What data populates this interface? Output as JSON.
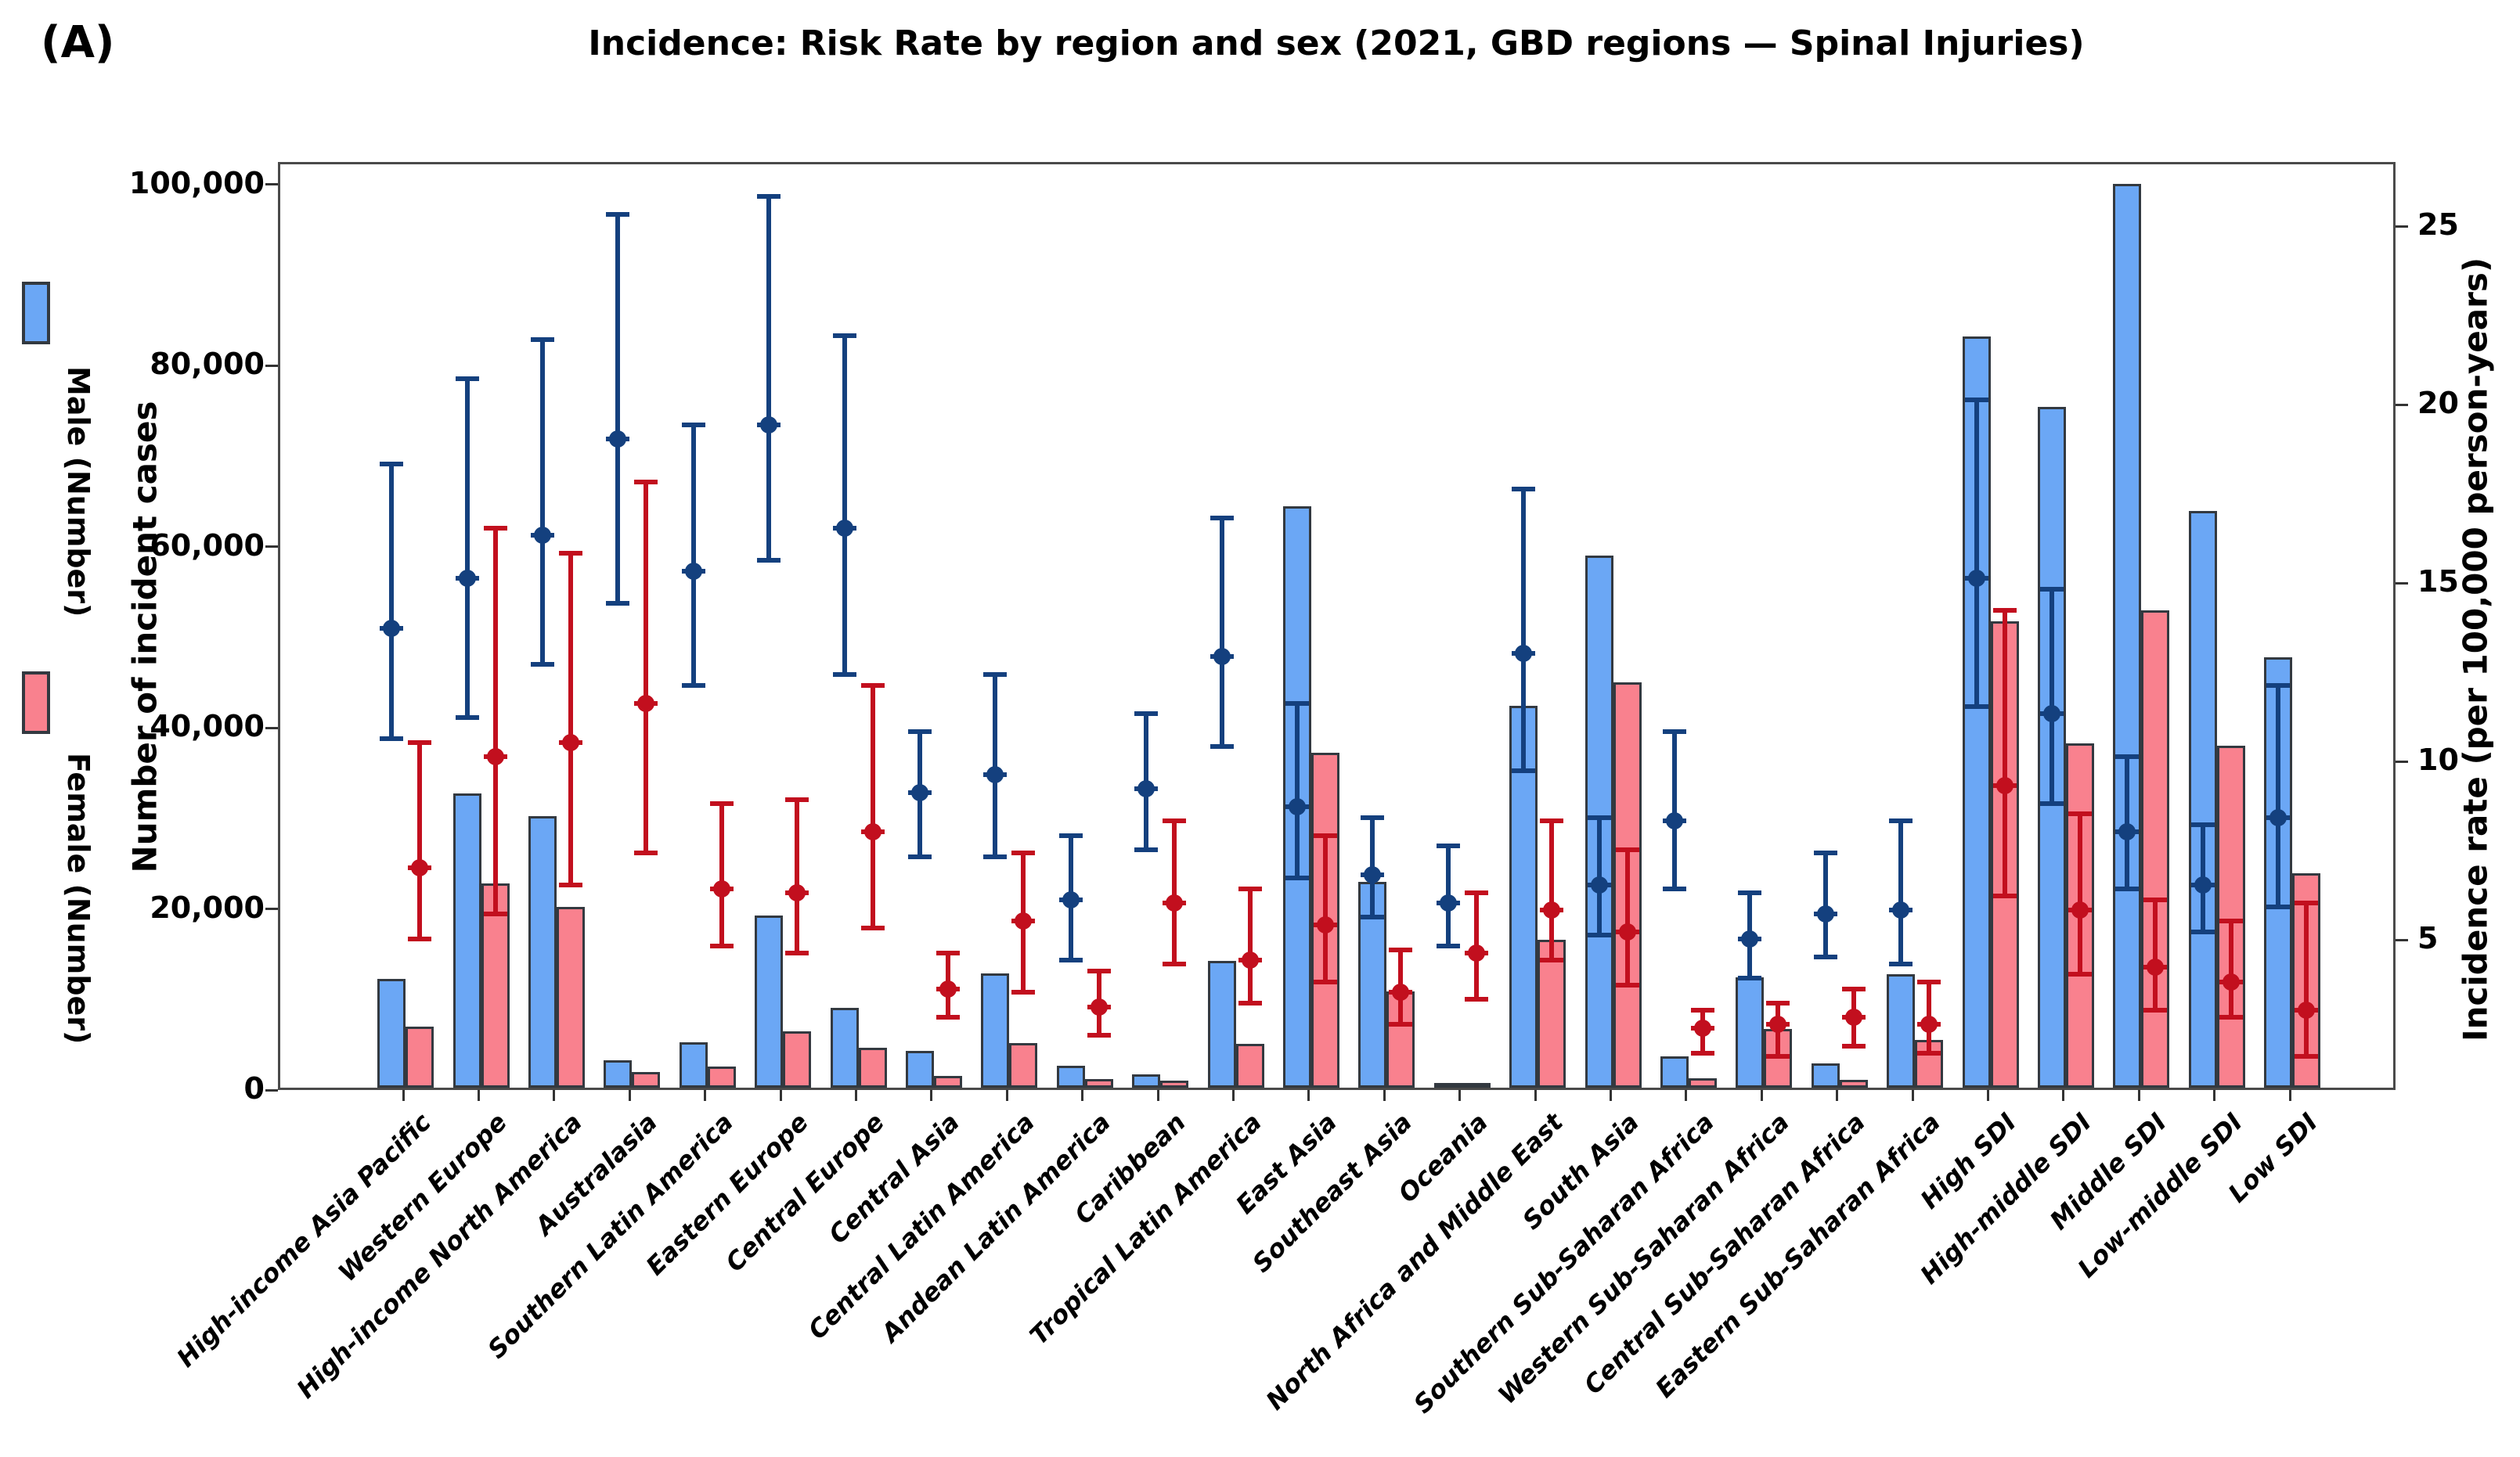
{
  "chart_data": {
    "type": "bar",
    "panel_label": "(A)",
    "title": "Incidence: Risk Rate by region and sex (2021, GBD regions — Spinal Injuries)",
    "left_axis": {
      "label": "Number of incident cases",
      "ticks": [
        0,
        20000,
        40000,
        60000,
        80000,
        100000
      ],
      "min": 0,
      "max": 102500,
      "tick_format": "comma"
    },
    "right_axis": {
      "label": "Incidence rate (per 100,000 person-years)",
      "ticks": [
        5,
        10,
        15,
        20,
        25
      ],
      "min": 0.8,
      "max": 26.8
    },
    "legend": [
      {
        "label": "Male (Number)",
        "color": "#6BA7F5"
      },
      {
        "label": "Female (Number)",
        "color": "#F9818E"
      }
    ],
    "colors": {
      "male_bar": "#6BA7F5",
      "female_bar": "#F9818E",
      "bar_edge": "#333940",
      "male_point": "#14407E",
      "female_point": "#C20F1E",
      "spine": "#4a4a4a"
    },
    "layout": {
      "x_start_frac": 0.0592,
      "x_step_frac": 0.035638,
      "bar_width_frac": 0.013309,
      "grid": false,
      "legend_position": "left-outside",
      "xlabel_rotation": 45
    },
    "regions": [
      {
        "name": "High-income Asia Pacific",
        "male_cases": 12000,
        "female_cases": 6700,
        "male_rate": {
          "value": 13.8,
          "lower": 10.7,
          "upper": 18.4
        },
        "female_rate": {
          "value": 7.1,
          "lower": 5.1,
          "upper": 10.6
        }
      },
      {
        "name": "Western Europe",
        "male_cases": 32500,
        "female_cases": 22600,
        "male_rate": {
          "value": 15.2,
          "lower": 11.3,
          "upper": 20.8
        },
        "female_rate": {
          "value": 10.2,
          "lower": 5.8,
          "upper": 16.6
        }
      },
      {
        "name": "High-income North America",
        "male_cases": 30000,
        "female_cases": 20000,
        "male_rate": {
          "value": 16.4,
          "lower": 12.8,
          "upper": 21.9
        },
        "female_rate": {
          "value": 10.6,
          "lower": 6.6,
          "upper": 15.9
        }
      },
      {
        "name": "Australasia",
        "male_cases": 3000,
        "female_cases": 1700,
        "male_rate": {
          "value": 19.1,
          "lower": 14.5,
          "upper": 25.4
        },
        "female_rate": {
          "value": 11.7,
          "lower": 7.5,
          "upper": 17.9
        }
      },
      {
        "name": "Southern Latin America",
        "male_cases": 5000,
        "female_cases": 2300,
        "male_rate": {
          "value": 15.4,
          "lower": 12.2,
          "upper": 19.5
        },
        "female_rate": {
          "value": 6.5,
          "lower": 4.9,
          "upper": 8.9
        }
      },
      {
        "name": "Eastern Europe",
        "male_cases": 19000,
        "female_cases": 6200,
        "male_rate": {
          "value": 19.5,
          "lower": 15.7,
          "upper": 25.9
        },
        "female_rate": {
          "value": 6.4,
          "lower": 4.7,
          "upper": 9.0
        }
      },
      {
        "name": "Central Europe",
        "male_cases": 8800,
        "female_cases": 4400,
        "male_rate": {
          "value": 16.6,
          "lower": 12.5,
          "upper": 22.0
        },
        "female_rate": {
          "value": 8.1,
          "lower": 5.4,
          "upper": 12.2
        }
      },
      {
        "name": "Central Asia",
        "male_cases": 4100,
        "female_cases": 1300,
        "male_rate": {
          "value": 9.2,
          "lower": 7.4,
          "upper": 10.9
        },
        "female_rate": {
          "value": 3.7,
          "lower": 2.9,
          "upper": 4.7
        }
      },
      {
        "name": "Central Latin America",
        "male_cases": 12600,
        "female_cases": 4900,
        "male_rate": {
          "value": 9.7,
          "lower": 7.4,
          "upper": 12.5
        },
        "female_rate": {
          "value": 5.6,
          "lower": 3.6,
          "upper": 7.5
        }
      },
      {
        "name": "Andean Latin America",
        "male_cases": 2400,
        "female_cases": 950,
        "male_rate": {
          "value": 6.2,
          "lower": 4.5,
          "upper": 8.0
        },
        "female_rate": {
          "value": 3.2,
          "lower": 2.4,
          "upper": 4.2
        }
      },
      {
        "name": "Caribbean",
        "male_cases": 1500,
        "female_cases": 800,
        "male_rate": {
          "value": 9.3,
          "lower": 7.6,
          "upper": 11.4
        },
        "female_rate": {
          "value": 6.1,
          "lower": 4.4,
          "upper": 8.4
        }
      },
      {
        "name": "Tropical Latin America",
        "male_cases": 14000,
        "female_cases": 4800,
        "male_rate": {
          "value": 13.0,
          "lower": 10.5,
          "upper": 16.9
        },
        "female_rate": {
          "value": 4.5,
          "lower": 3.3,
          "upper": 6.5
        }
      },
      {
        "name": "East Asia",
        "male_cases": 64200,
        "female_cases": 37000,
        "male_rate": {
          "value": 8.8,
          "lower": 6.8,
          "upper": 11.7
        },
        "female_rate": {
          "value": 5.5,
          "lower": 3.9,
          "upper": 8.0
        }
      },
      {
        "name": "Southeast Asia",
        "male_cases": 22700,
        "female_cases": 10600,
        "male_rate": {
          "value": 6.9,
          "lower": 5.7,
          "upper": 8.5
        },
        "female_rate": {
          "value": 3.6,
          "lower": 2.7,
          "upper": 4.8
        }
      },
      {
        "name": "Oceania",
        "male_cases": 500,
        "female_cases": 350,
        "male_rate": {
          "value": 6.1,
          "lower": 4.9,
          "upper": 7.7
        },
        "female_rate": {
          "value": 4.7,
          "lower": 3.4,
          "upper": 6.4
        }
      },
      {
        "name": "North Africa and Middle East",
        "male_cases": 42200,
        "female_cases": 16300,
        "male_rate": {
          "value": 13.1,
          "lower": 9.8,
          "upper": 17.7
        },
        "female_rate": {
          "value": 5.9,
          "lower": 4.5,
          "upper": 8.4
        }
      },
      {
        "name": "South Asia",
        "male_cases": 58800,
        "female_cases": 44800,
        "male_rate": {
          "value": 6.6,
          "lower": 5.2,
          "upper": 8.5
        },
        "female_rate": {
          "value": 5.3,
          "lower": 3.8,
          "upper": 7.6
        }
      },
      {
        "name": "Southern Sub-Saharan Africa",
        "male_cases": 3500,
        "female_cases": 1000,
        "male_rate": {
          "value": 8.4,
          "lower": 6.5,
          "upper": 10.9
        },
        "female_rate": {
          "value": 2.6,
          "lower": 1.9,
          "upper": 3.1
        }
      },
      {
        "name": "Western Sub-Saharan Africa",
        "male_cases": 12200,
        "female_cases": 6500,
        "male_rate": {
          "value": 5.1,
          "lower": 4.0,
          "upper": 6.4
        },
        "female_rate": {
          "value": 2.7,
          "lower": 1.8,
          "upper": 3.3
        }
      },
      {
        "name": "Central Sub-Saharan Africa",
        "male_cases": 2700,
        "female_cases": 900,
        "male_rate": {
          "value": 5.8,
          "lower": 4.6,
          "upper": 7.5
        },
        "female_rate": {
          "value": 2.9,
          "lower": 2.1,
          "upper": 3.7
        }
      },
      {
        "name": "Eastern Sub-Saharan Africa",
        "male_cases": 12500,
        "female_cases": 5300,
        "male_rate": {
          "value": 5.9,
          "lower": 4.4,
          "upper": 8.4
        },
        "female_rate": {
          "value": 2.7,
          "lower": 1.9,
          "upper": 3.9
        }
      },
      {
        "name": "High SDI",
        "male_cases": 83000,
        "female_cases": 51500,
        "male_rate": {
          "value": 15.2,
          "lower": 11.6,
          "upper": 20.2
        },
        "female_rate": {
          "value": 9.4,
          "lower": 6.3,
          "upper": 14.3
        }
      },
      {
        "name": "High-middle SDI",
        "male_cases": 75200,
        "female_cases": 38000,
        "male_rate": {
          "value": 11.4,
          "lower": 8.9,
          "upper": 14.9
        },
        "female_rate": {
          "value": 5.9,
          "lower": 4.1,
          "upper": 8.6
        }
      },
      {
        "name": "Middle SDI",
        "male_cases": 99800,
        "female_cases": 52700,
        "male_rate": {
          "value": 8.1,
          "lower": 6.5,
          "upper": 10.2
        },
        "female_rate": {
          "value": 4.3,
          "lower": 3.1,
          "upper": 6.2
        }
      },
      {
        "name": "Low-middle SDI",
        "male_cases": 63700,
        "female_cases": 37800,
        "male_rate": {
          "value": 6.6,
          "lower": 5.3,
          "upper": 8.3
        },
        "female_rate": {
          "value": 3.9,
          "lower": 2.9,
          "upper": 5.6
        }
      },
      {
        "name": "Low SDI",
        "male_cases": 47500,
        "female_cases": 23700,
        "male_rate": {
          "value": 8.5,
          "lower": 6.0,
          "upper": 12.2
        },
        "female_rate": {
          "value": 3.1,
          "lower": 1.8,
          "upper": 6.1
        }
      }
    ]
  }
}
